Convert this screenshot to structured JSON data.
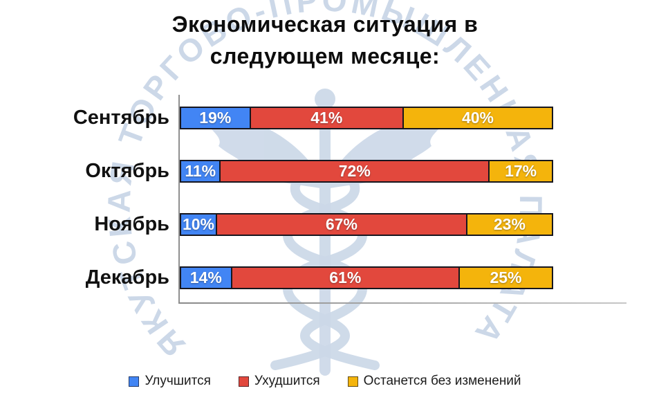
{
  "title": {
    "line1": "Экономическая ситуация в",
    "line2": "следующем месяце:"
  },
  "watermark": {
    "arc_text": "ЯКУТСКАЯ ТОРГОВО-ПРОМЫШЛЕННАЯ ПАЛАТА",
    "emblem": "caduceus-icon",
    "color": "#ccd8e8"
  },
  "chart_data": {
    "type": "bar",
    "orientation": "horizontal",
    "stacked": true,
    "unit": "%",
    "xlim": [
      0,
      100
    ],
    "grid": false,
    "legend_position": "bottom",
    "title": "Экономическая ситуация в следующем месяце:",
    "categories": [
      "Сентябрь",
      "Октябрь",
      "Ноябрь",
      "Декабрь"
    ],
    "series": [
      {
        "name": "Улучшится",
        "color": "#4285F4",
        "values": [
          19,
          11,
          10,
          14
        ]
      },
      {
        "name": "Ухудшится",
        "color": "#E2483D",
        "values": [
          41,
          72,
          67,
          61
        ]
      },
      {
        "name": "Останется без изменений",
        "color": "#F4B40C",
        "values": [
          40,
          17,
          23,
          25
        ]
      }
    ],
    "value_labels": [
      [
        "19%",
        "41%",
        "40%"
      ],
      [
        "11%",
        "72%",
        "17%"
      ],
      [
        "10%",
        "67%",
        "23%"
      ],
      [
        "14%",
        "61%",
        "25%"
      ]
    ],
    "axis_color": "#8f8f8f",
    "segment_border_color": "#16161e"
  }
}
